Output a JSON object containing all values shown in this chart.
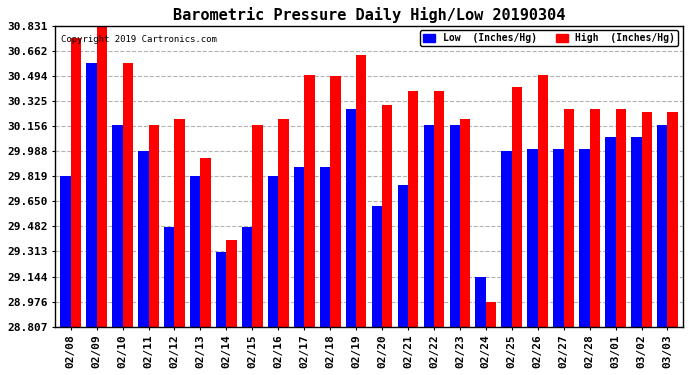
{
  "title": "Barometric Pressure Daily High/Low 20190304",
  "copyright": "Copyright 2019 Cartronics.com",
  "dates": [
    "02/08",
    "02/09",
    "02/10",
    "02/11",
    "02/12",
    "02/13",
    "02/14",
    "02/15",
    "02/16",
    "02/17",
    "02/18",
    "02/19",
    "02/20",
    "02/21",
    "02/22",
    "02/23",
    "02/24",
    "02/25",
    "02/26",
    "02/27",
    "02/28",
    "03/01",
    "03/02",
    "03/03"
  ],
  "low": [
    29.82,
    30.58,
    30.16,
    29.99,
    29.48,
    29.82,
    29.31,
    29.48,
    29.82,
    29.88,
    29.88,
    30.27,
    29.62,
    29.76,
    30.16,
    30.16,
    29.14,
    29.99,
    30.0,
    30.0,
    30.0,
    30.08,
    30.08,
    30.16
  ],
  "high": [
    30.75,
    30.83,
    30.58,
    30.16,
    30.2,
    29.94,
    29.39,
    30.16,
    30.2,
    30.5,
    30.49,
    30.63,
    30.3,
    30.39,
    30.39,
    30.2,
    28.97,
    30.42,
    30.5,
    30.27,
    30.27,
    30.27,
    30.25,
    30.25
  ],
  "low_color": "#0000ff",
  "high_color": "#ff0000",
  "bg_color": "#ffffff",
  "plot_bg": "#ffffff",
  "grid_color": "#aaaaaa",
  "ymin": 28.807,
  "ymax": 30.831,
  "yticks": [
    28.807,
    28.976,
    29.144,
    29.313,
    29.482,
    29.65,
    29.819,
    29.988,
    30.156,
    30.325,
    30.494,
    30.662,
    30.831
  ],
  "title_fontsize": 11,
  "tick_fontsize": 8,
  "legend_low": "Low  (Inches/Hg)",
  "legend_high": "High  (Inches/Hg)"
}
